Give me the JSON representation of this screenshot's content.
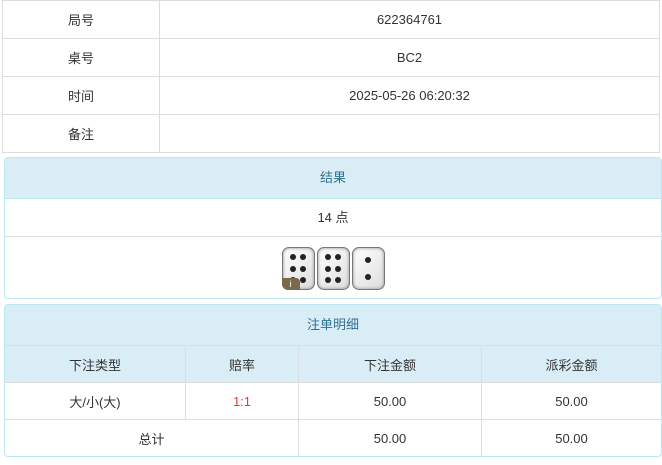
{
  "info": [
    {
      "label": "局号",
      "value": "622364761"
    },
    {
      "label": "桌号",
      "value": "BC2"
    },
    {
      "label": "时间",
      "value": "2025-05-26 06:20:32"
    },
    {
      "label": "备注",
      "value": ""
    }
  ],
  "result": {
    "title": "结果",
    "points": "14 点",
    "dice": [
      6,
      6,
      2
    ],
    "info_badge": "i"
  },
  "bets": {
    "title": "注单明细",
    "headers": [
      "下注类型",
      "赔率",
      "下注金额",
      "派彩金额"
    ],
    "rows": [
      {
        "type": "大/小(大)",
        "odds": "1:1",
        "amount": "50.00",
        "payout": "50.00"
      }
    ],
    "total": {
      "label": "总计",
      "amount": "50.00",
      "payout": "50.00"
    },
    "odds_color": "#e4393c"
  }
}
